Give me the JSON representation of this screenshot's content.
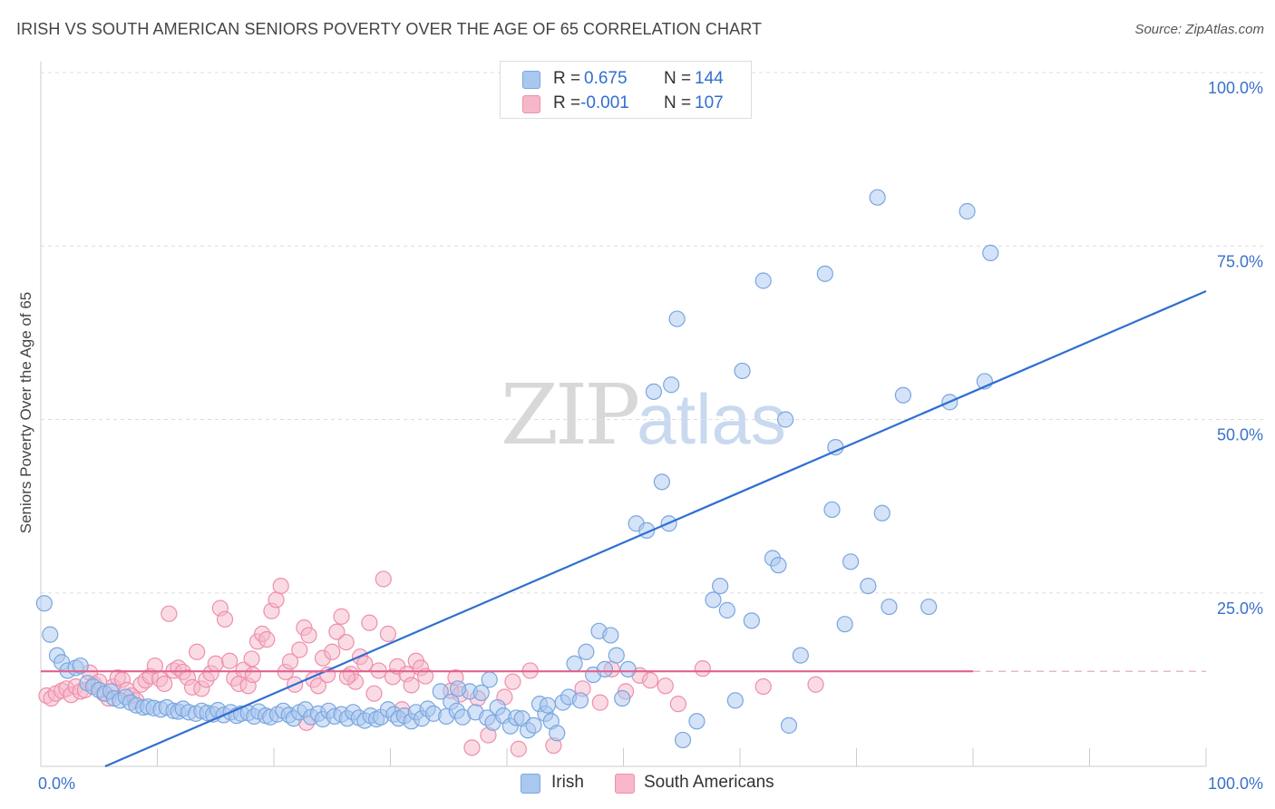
{
  "title": "IRISH VS SOUTH AMERICAN SENIORS POVERTY OVER THE AGE OF 65 CORRELATION CHART",
  "source": "Source: ZipAtlas.com",
  "watermark": {
    "zip": "ZIP",
    "atlas": "atlas"
  },
  "legend": {
    "rows": [
      {
        "r_label": "R =",
        "r_value": "0.675",
        "n_label": "N =",
        "n_value": "144"
      },
      {
        "r_label": "R =",
        "r_value": "-0.001",
        "n_label": "N =",
        "n_value": "107"
      }
    ]
  },
  "series_legend": [
    "Irish",
    "South Americans"
  ],
  "colors": {
    "irish_fill": "#a9c8f0",
    "irish_stroke": "#7aa6df",
    "irish_line": "#2f6fd1",
    "sa_fill": "#f6b8c9",
    "sa_stroke": "#ee8fab",
    "sa_line": "#e0628c",
    "axis_label": "#3a72c8"
  },
  "chart_data": {
    "type": "scatter",
    "title": "IRISH VS SOUTH AMERICAN SENIORS POVERTY OVER THE AGE OF 65 CORRELATION CHART",
    "xlabel": "",
    "ylabel": "Seniors Poverty Over the Age of 65",
    "xlim": [
      0,
      100
    ],
    "ylim": [
      0,
      100
    ],
    "x_tick_labels": [
      "0.0%",
      "100.0%"
    ],
    "y_tick_labels": [
      "25.0%",
      "50.0%",
      "75.0%",
      "100.0%"
    ],
    "y_ticks": [
      25,
      50,
      75,
      100
    ],
    "grid": true,
    "legend_position": "top-center",
    "series": [
      {
        "name": "Irish",
        "r": 0.675,
        "n": 144,
        "trend": {
          "x": [
            0,
            100
          ],
          "y": [
            -4.0,
            68.5
          ]
        },
        "points": [
          [
            0.3,
            23.5
          ],
          [
            0.8,
            19.0
          ],
          [
            1.4,
            16.0
          ],
          [
            1.8,
            15.0
          ],
          [
            2.3,
            13.8
          ],
          [
            3.0,
            14.2
          ],
          [
            3.4,
            14.5
          ],
          [
            4.0,
            12.0
          ],
          [
            4.5,
            11.5
          ],
          [
            5.0,
            11.0
          ],
          [
            5.5,
            10.5
          ],
          [
            6.0,
            10.8
          ],
          [
            6.3,
            9.8
          ],
          [
            6.8,
            9.5
          ],
          [
            7.3,
            10.0
          ],
          [
            7.7,
            9.2
          ],
          [
            8.2,
            8.8
          ],
          [
            8.8,
            8.5
          ],
          [
            9.2,
            8.6
          ],
          [
            9.7,
            8.4
          ],
          [
            10.3,
            8.2
          ],
          [
            10.8,
            8.5
          ],
          [
            11.4,
            8.0
          ],
          [
            11.8,
            7.9
          ],
          [
            12.2,
            8.3
          ],
          [
            12.7,
            7.8
          ],
          [
            13.3,
            7.6
          ],
          [
            13.8,
            8.0
          ],
          [
            14.3,
            7.7
          ],
          [
            14.8,
            7.5
          ],
          [
            15.2,
            8.1
          ],
          [
            15.7,
            7.4
          ],
          [
            16.3,
            7.8
          ],
          [
            16.8,
            7.3
          ],
          [
            17.2,
            7.6
          ],
          [
            17.8,
            7.7
          ],
          [
            18.3,
            7.2
          ],
          [
            18.7,
            7.9
          ],
          [
            19.3,
            7.3
          ],
          [
            19.7,
            7.1
          ],
          [
            20.3,
            7.5
          ],
          [
            20.8,
            8.0
          ],
          [
            21.3,
            7.4
          ],
          [
            21.7,
            6.9
          ],
          [
            22.2,
            7.8
          ],
          [
            22.7,
            8.2
          ],
          [
            23.2,
            7.1
          ],
          [
            23.8,
            7.6
          ],
          [
            24.2,
            6.8
          ],
          [
            24.7,
            8.0
          ],
          [
            25.2,
            7.2
          ],
          [
            25.8,
            7.5
          ],
          [
            26.3,
            6.9
          ],
          [
            26.8,
            7.8
          ],
          [
            27.3,
            7.0
          ],
          [
            27.8,
            6.6
          ],
          [
            28.3,
            7.3
          ],
          [
            28.8,
            6.8
          ],
          [
            29.2,
            7.1
          ],
          [
            29.8,
            8.2
          ],
          [
            30.3,
            7.5
          ],
          [
            30.7,
            6.9
          ],
          [
            31.2,
            7.3
          ],
          [
            31.8,
            6.5
          ],
          [
            32.2,
            7.8
          ],
          [
            32.7,
            6.9
          ],
          [
            33.2,
            8.3
          ],
          [
            33.7,
            7.6
          ],
          [
            34.3,
            10.8
          ],
          [
            34.8,
            7.2
          ],
          [
            35.2,
            9.3
          ],
          [
            35.7,
            8.0
          ],
          [
            36.2,
            7.1
          ],
          [
            36.8,
            10.8
          ],
          [
            37.3,
            7.8
          ],
          [
            37.8,
            10.6
          ],
          [
            38.3,
            7.0
          ],
          [
            38.8,
            6.3
          ],
          [
            39.2,
            8.5
          ],
          [
            39.7,
            7.3
          ],
          [
            40.3,
            5.8
          ],
          [
            40.8,
            7.0
          ],
          [
            41.3,
            6.9
          ],
          [
            41.8,
            5.2
          ],
          [
            42.3,
            5.9
          ],
          [
            42.8,
            9.0
          ],
          [
            43.3,
            7.6
          ],
          [
            43.8,
            6.5
          ],
          [
            44.3,
            4.8
          ],
          [
            44.8,
            9.2
          ],
          [
            45.3,
            10.0
          ],
          [
            45.8,
            14.8
          ],
          [
            46.3,
            9.5
          ],
          [
            46.8,
            16.5
          ],
          [
            47.4,
            13.2
          ],
          [
            47.9,
            19.5
          ],
          [
            48.4,
            14.0
          ],
          [
            48.9,
            18.9
          ],
          [
            49.4,
            16.0
          ],
          [
            49.9,
            9.8
          ],
          [
            50.4,
            14.0
          ],
          [
            51.1,
            35.0
          ],
          [
            52.0,
            34.0
          ],
          [
            52.6,
            54.0
          ],
          [
            53.3,
            41.0
          ],
          [
            53.9,
            35.0
          ],
          [
            54.1,
            55.0
          ],
          [
            54.6,
            64.5
          ],
          [
            55.1,
            3.8
          ],
          [
            56.3,
            6.5
          ],
          [
            57.7,
            24.0
          ],
          [
            58.3,
            26.0
          ],
          [
            58.9,
            22.5
          ],
          [
            59.6,
            9.5
          ],
          [
            60.2,
            57.0
          ],
          [
            61.0,
            21.0
          ],
          [
            62.0,
            70.0
          ],
          [
            62.8,
            30.0
          ],
          [
            63.3,
            29.0
          ],
          [
            63.9,
            50.0
          ],
          [
            64.2,
            5.9
          ],
          [
            65.2,
            16.0
          ],
          [
            67.3,
            71.0
          ],
          [
            67.9,
            37.0
          ],
          [
            68.2,
            46.0
          ],
          [
            69.0,
            20.5
          ],
          [
            69.5,
            29.5
          ],
          [
            71.0,
            26.0
          ],
          [
            71.8,
            82.0
          ],
          [
            72.2,
            36.5
          ],
          [
            72.8,
            23.0
          ],
          [
            74.0,
            53.5
          ],
          [
            76.2,
            23.0
          ],
          [
            78.0,
            52.5
          ],
          [
            79.5,
            80.0
          ],
          [
            81.0,
            55.5
          ],
          [
            81.5,
            74.0
          ],
          [
            38.5,
            12.5
          ],
          [
            35.8,
            11.2
          ],
          [
            43.5,
            8.8
          ]
        ]
      },
      {
        "name": "South Americans",
        "r": -0.001,
        "n": 107,
        "trend": {
          "x": [
            0,
            80
          ],
          "y": [
            13.7,
            13.7
          ]
        },
        "points": [
          [
            0.5,
            10.2
          ],
          [
            0.9,
            9.8
          ],
          [
            1.3,
            10.5
          ],
          [
            1.8,
            10.9
          ],
          [
            2.2,
            11.2
          ],
          [
            2.6,
            10.3
          ],
          [
            3.0,
            11.5
          ],
          [
            3.4,
            10.8
          ],
          [
            3.8,
            11.0
          ],
          [
            4.2,
            13.5
          ],
          [
            4.6,
            11.8
          ],
          [
            5.0,
            12.2
          ],
          [
            5.4,
            10.5
          ],
          [
            5.8,
            9.8
          ],
          [
            6.2,
            11.5
          ],
          [
            6.6,
            12.8
          ],
          [
            7.0,
            12.5
          ],
          [
            7.4,
            11.0
          ],
          [
            7.8,
            10.2
          ],
          [
            8.2,
            9.5
          ],
          [
            8.6,
            11.8
          ],
          [
            9.0,
            12.4
          ],
          [
            9.4,
            13.0
          ],
          [
            9.8,
            14.5
          ],
          [
            10.2,
            12.6
          ],
          [
            10.6,
            11.9
          ],
          [
            11.0,
            22.0
          ],
          [
            11.4,
            13.8
          ],
          [
            11.8,
            14.2
          ],
          [
            12.2,
            13.6
          ],
          [
            12.6,
            12.8
          ],
          [
            13.0,
            11.4
          ],
          [
            13.4,
            16.5
          ],
          [
            13.8,
            11.2
          ],
          [
            14.2,
            12.5
          ],
          [
            14.6,
            13.4
          ],
          [
            15.0,
            14.8
          ],
          [
            15.4,
            22.8
          ],
          [
            15.8,
            21.2
          ],
          [
            16.2,
            15.2
          ],
          [
            16.6,
            12.7
          ],
          [
            17.0,
            11.9
          ],
          [
            17.4,
            13.9
          ],
          [
            17.8,
            11.6
          ],
          [
            18.2,
            13.2
          ],
          [
            18.6,
            18.0
          ],
          [
            19.0,
            19.1
          ],
          [
            19.4,
            18.3
          ],
          [
            19.8,
            22.4
          ],
          [
            20.2,
            24.0
          ],
          [
            20.6,
            26.0
          ],
          [
            21.0,
            13.6
          ],
          [
            21.4,
            15.1
          ],
          [
            21.8,
            11.8
          ],
          [
            22.2,
            16.8
          ],
          [
            22.6,
            20.0
          ],
          [
            23.0,
            18.9
          ],
          [
            23.4,
            12.5
          ],
          [
            23.8,
            11.6
          ],
          [
            24.2,
            15.6
          ],
          [
            24.6,
            13.2
          ],
          [
            25.0,
            16.5
          ],
          [
            25.4,
            19.4
          ],
          [
            25.8,
            21.6
          ],
          [
            26.2,
            17.9
          ],
          [
            26.6,
            13.3
          ],
          [
            27.0,
            12.2
          ],
          [
            27.4,
            15.8
          ],
          [
            27.8,
            14.8
          ],
          [
            28.2,
            20.7
          ],
          [
            28.6,
            10.5
          ],
          [
            29.0,
            13.8
          ],
          [
            29.4,
            27.0
          ],
          [
            29.8,
            19.1
          ],
          [
            30.2,
            12.9
          ],
          [
            30.6,
            14.4
          ],
          [
            31.0,
            8.2
          ],
          [
            31.4,
            13.3
          ],
          [
            31.8,
            11.7
          ],
          [
            32.2,
            15.2
          ],
          [
            32.6,
            14.2
          ],
          [
            33.0,
            13.0
          ],
          [
            35.2,
            10.9
          ],
          [
            35.6,
            12.8
          ],
          [
            36.0,
            10.4
          ],
          [
            37.0,
            2.7
          ],
          [
            37.5,
            9.8
          ],
          [
            38.4,
            4.5
          ],
          [
            39.8,
            10.0
          ],
          [
            40.5,
            12.2
          ],
          [
            41.0,
            2.5
          ],
          [
            42.0,
            13.8
          ],
          [
            44.0,
            3.0
          ],
          [
            46.5,
            11.2
          ],
          [
            48.0,
            9.2
          ],
          [
            49.0,
            14.0
          ],
          [
            50.2,
            10.8
          ],
          [
            51.4,
            13.1
          ],
          [
            52.3,
            12.4
          ],
          [
            53.6,
            11.6
          ],
          [
            54.7,
            9.0
          ],
          [
            56.8,
            14.1
          ],
          [
            62.0,
            11.5
          ],
          [
            66.5,
            11.8
          ],
          [
            18.1,
            15.5
          ],
          [
            22.8,
            6.3
          ],
          [
            26.3,
            12.9
          ]
        ]
      }
    ]
  }
}
